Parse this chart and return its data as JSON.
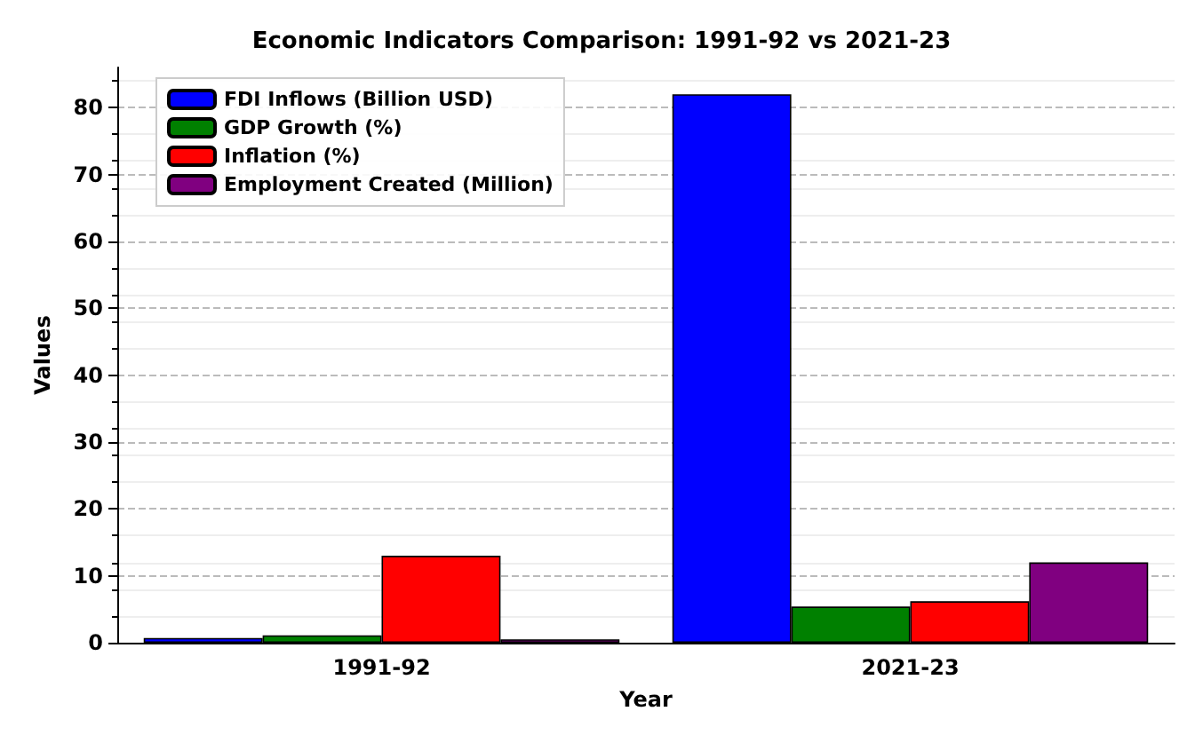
{
  "chart_data": {
    "type": "bar",
    "title": "Economic Indicators Comparison: 1991-92 vs 2021-23",
    "xlabel": "Year",
    "ylabel": "Values",
    "categories": [
      "1991-92",
      "2021-23"
    ],
    "series": [
      {
        "name": "FDI Inflows (Billion USD)",
        "color": "#0000ff",
        "values": [
          0.7,
          82
        ]
      },
      {
        "name": "GDP Growth (%)",
        "color": "#008000",
        "values": [
          1.1,
          5.4
        ]
      },
      {
        "name": "Inflation (%)",
        "color": "#ff0000",
        "values": [
          13,
          6.2
        ]
      },
      {
        "name": "Employment Created (Million)",
        "color": "#800080",
        "values": [
          0.5,
          12
        ]
      }
    ],
    "ylim": [
      0,
      86
    ],
    "yticks": [
      0,
      10,
      20,
      30,
      40,
      50,
      60,
      70,
      80
    ],
    "grid": "y",
    "legend": "top left"
  }
}
